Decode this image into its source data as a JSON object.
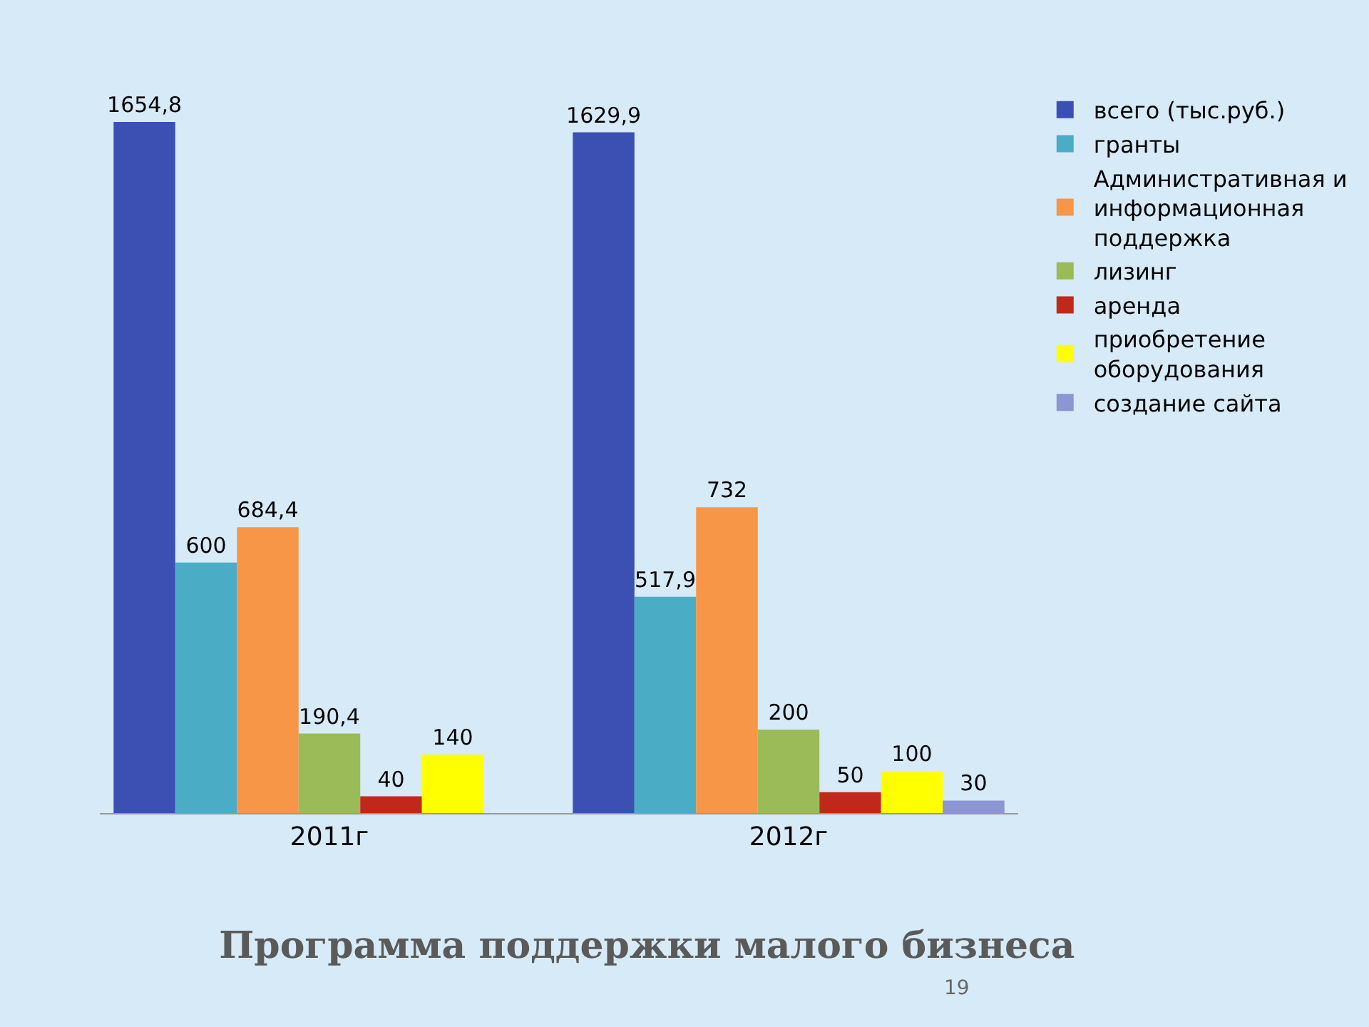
{
  "chart_data": {
    "type": "bar",
    "title": "Программа поддержки малого бизнеса",
    "categories": [
      "2011г",
      "2012г"
    ],
    "series": [
      {
        "name": "всего (тыс.руб.)",
        "color": "#3c50b4",
        "values": [
          1654.8,
          1629.9
        ],
        "value_labels": [
          "1654,8",
          "1629,9"
        ]
      },
      {
        "name": "гранты",
        "color": "#4bacc6",
        "values": [
          600,
          517.9
        ],
        "value_labels": [
          "600",
          "517,9"
        ]
      },
      {
        "name": "Административная и информационная поддержка",
        "color": "#f79646",
        "values": [
          684.4,
          732
        ],
        "value_labels": [
          "684,4",
          "732"
        ]
      },
      {
        "name": "лизинг",
        "color": "#9bbb59",
        "values": [
          190.4,
          200
        ],
        "value_labels": [
          "190,4",
          "200"
        ]
      },
      {
        "name": "аренда",
        "color": "#c0281c",
        "values": [
          40,
          50
        ],
        "value_labels": [
          "40",
          "50"
        ]
      },
      {
        "name": "приобретение оборудования",
        "color": "#ffff00",
        "values": [
          140,
          100
        ],
        "value_labels": [
          "140",
          "100"
        ]
      },
      {
        "name": "создание сайта",
        "color": "#8c96d2",
        "values": [
          null,
          30
        ],
        "value_labels": [
          null,
          "30"
        ]
      }
    ],
    "annotations": [
      "19"
    ],
    "legend": "right",
    "grid": false
  }
}
